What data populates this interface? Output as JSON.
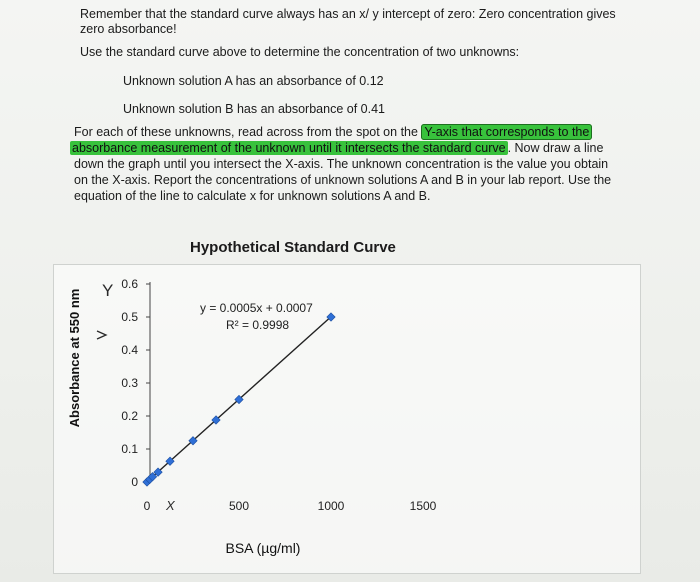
{
  "instructions": {
    "line1": "Remember that the standard curve always has an x/ y intercept of zero: Zero concentration gives",
    "line2": "zero absorbance!",
    "line3": "Use the standard curve above to determine the concentration of two unknowns:",
    "unknown_a": "Unknown solution A has an absorbance of 0.12",
    "unknown_b": "Unknown solution B has an absorbance of 0.41",
    "p1_pre": "For each of these unknowns, read across from the spot on the ",
    "p1_hl1": "Y-axis that corresponds to the",
    "p2_hl": "absorbance measurement of the unknown until it intersects the standard curve",
    "p2_post": ". Now draw a line",
    "p3": "down the graph until you intersect the X-axis. The unknown concentration is the value you obtain",
    "p4": "on the X-axis. Report the concentrations of unknown solutions A and B in your lab report. Use the",
    "p5": "equation of the line to calculate x for unknown solutions A and B."
  },
  "chart_data": {
    "type": "scatter",
    "title": "Hypothetical Standard Curve",
    "xlabel": "BSA (µg/ml)",
    "ylabel": "Absorbance at  550 nm",
    "x_ticks": [
      "0",
      "500",
      "1000",
      "1500"
    ],
    "y_ticks": [
      "0",
      "0.1",
      "0.2",
      "0.3",
      "0.4",
      "0.5",
      "0.6"
    ],
    "xlim": [
      0,
      1500
    ],
    "ylim": [
      0,
      0.6
    ],
    "points": [
      {
        "x": 0,
        "y": 0
      },
      {
        "x": 15,
        "y": 0.008
      },
      {
        "x": 30,
        "y": 0.016
      },
      {
        "x": 60,
        "y": 0.03
      },
      {
        "x": 125,
        "y": 0.063
      },
      {
        "x": 250,
        "y": 0.125
      },
      {
        "x": 375,
        "y": 0.188
      },
      {
        "x": 500,
        "y": 0.25
      },
      {
        "x": 1000,
        "y": 0.5
      }
    ],
    "trendline": {
      "slope": 0.0005,
      "intercept": 0.0007,
      "x_range": [
        0,
        1000
      ]
    },
    "equation": "y = 0.0005x + 0.0007",
    "r_squared": "R² = 0.9998",
    "handwritten_y": "Y",
    "handwritten_x": "X"
  }
}
